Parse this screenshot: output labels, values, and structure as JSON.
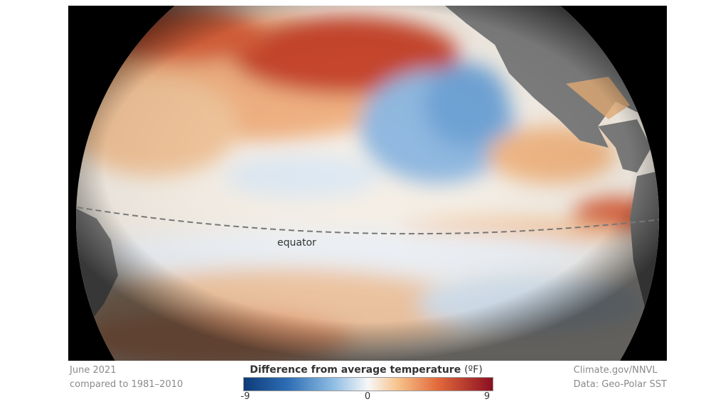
{
  "map": {
    "equator_label": "equator",
    "colors": {
      "land": "#7d7d7d",
      "cold": "#2166ac",
      "cool": "#9ec3e4",
      "neutral": "#f7f7f7",
      "warm": "#f4a460",
      "hot": "#b2182b",
      "background": "#000000"
    }
  },
  "footer": {
    "date": "June 2021",
    "baseline": "compared to 1981–2010",
    "credit": "Climate.gov/NNVL",
    "source": "Data: Geo-Polar SST"
  },
  "legend": {
    "title": "Difference from average temperature",
    "unit": "(ºF)",
    "ticks": [
      "-9",
      "0",
      "9"
    ],
    "min": -9,
    "max": 9
  }
}
